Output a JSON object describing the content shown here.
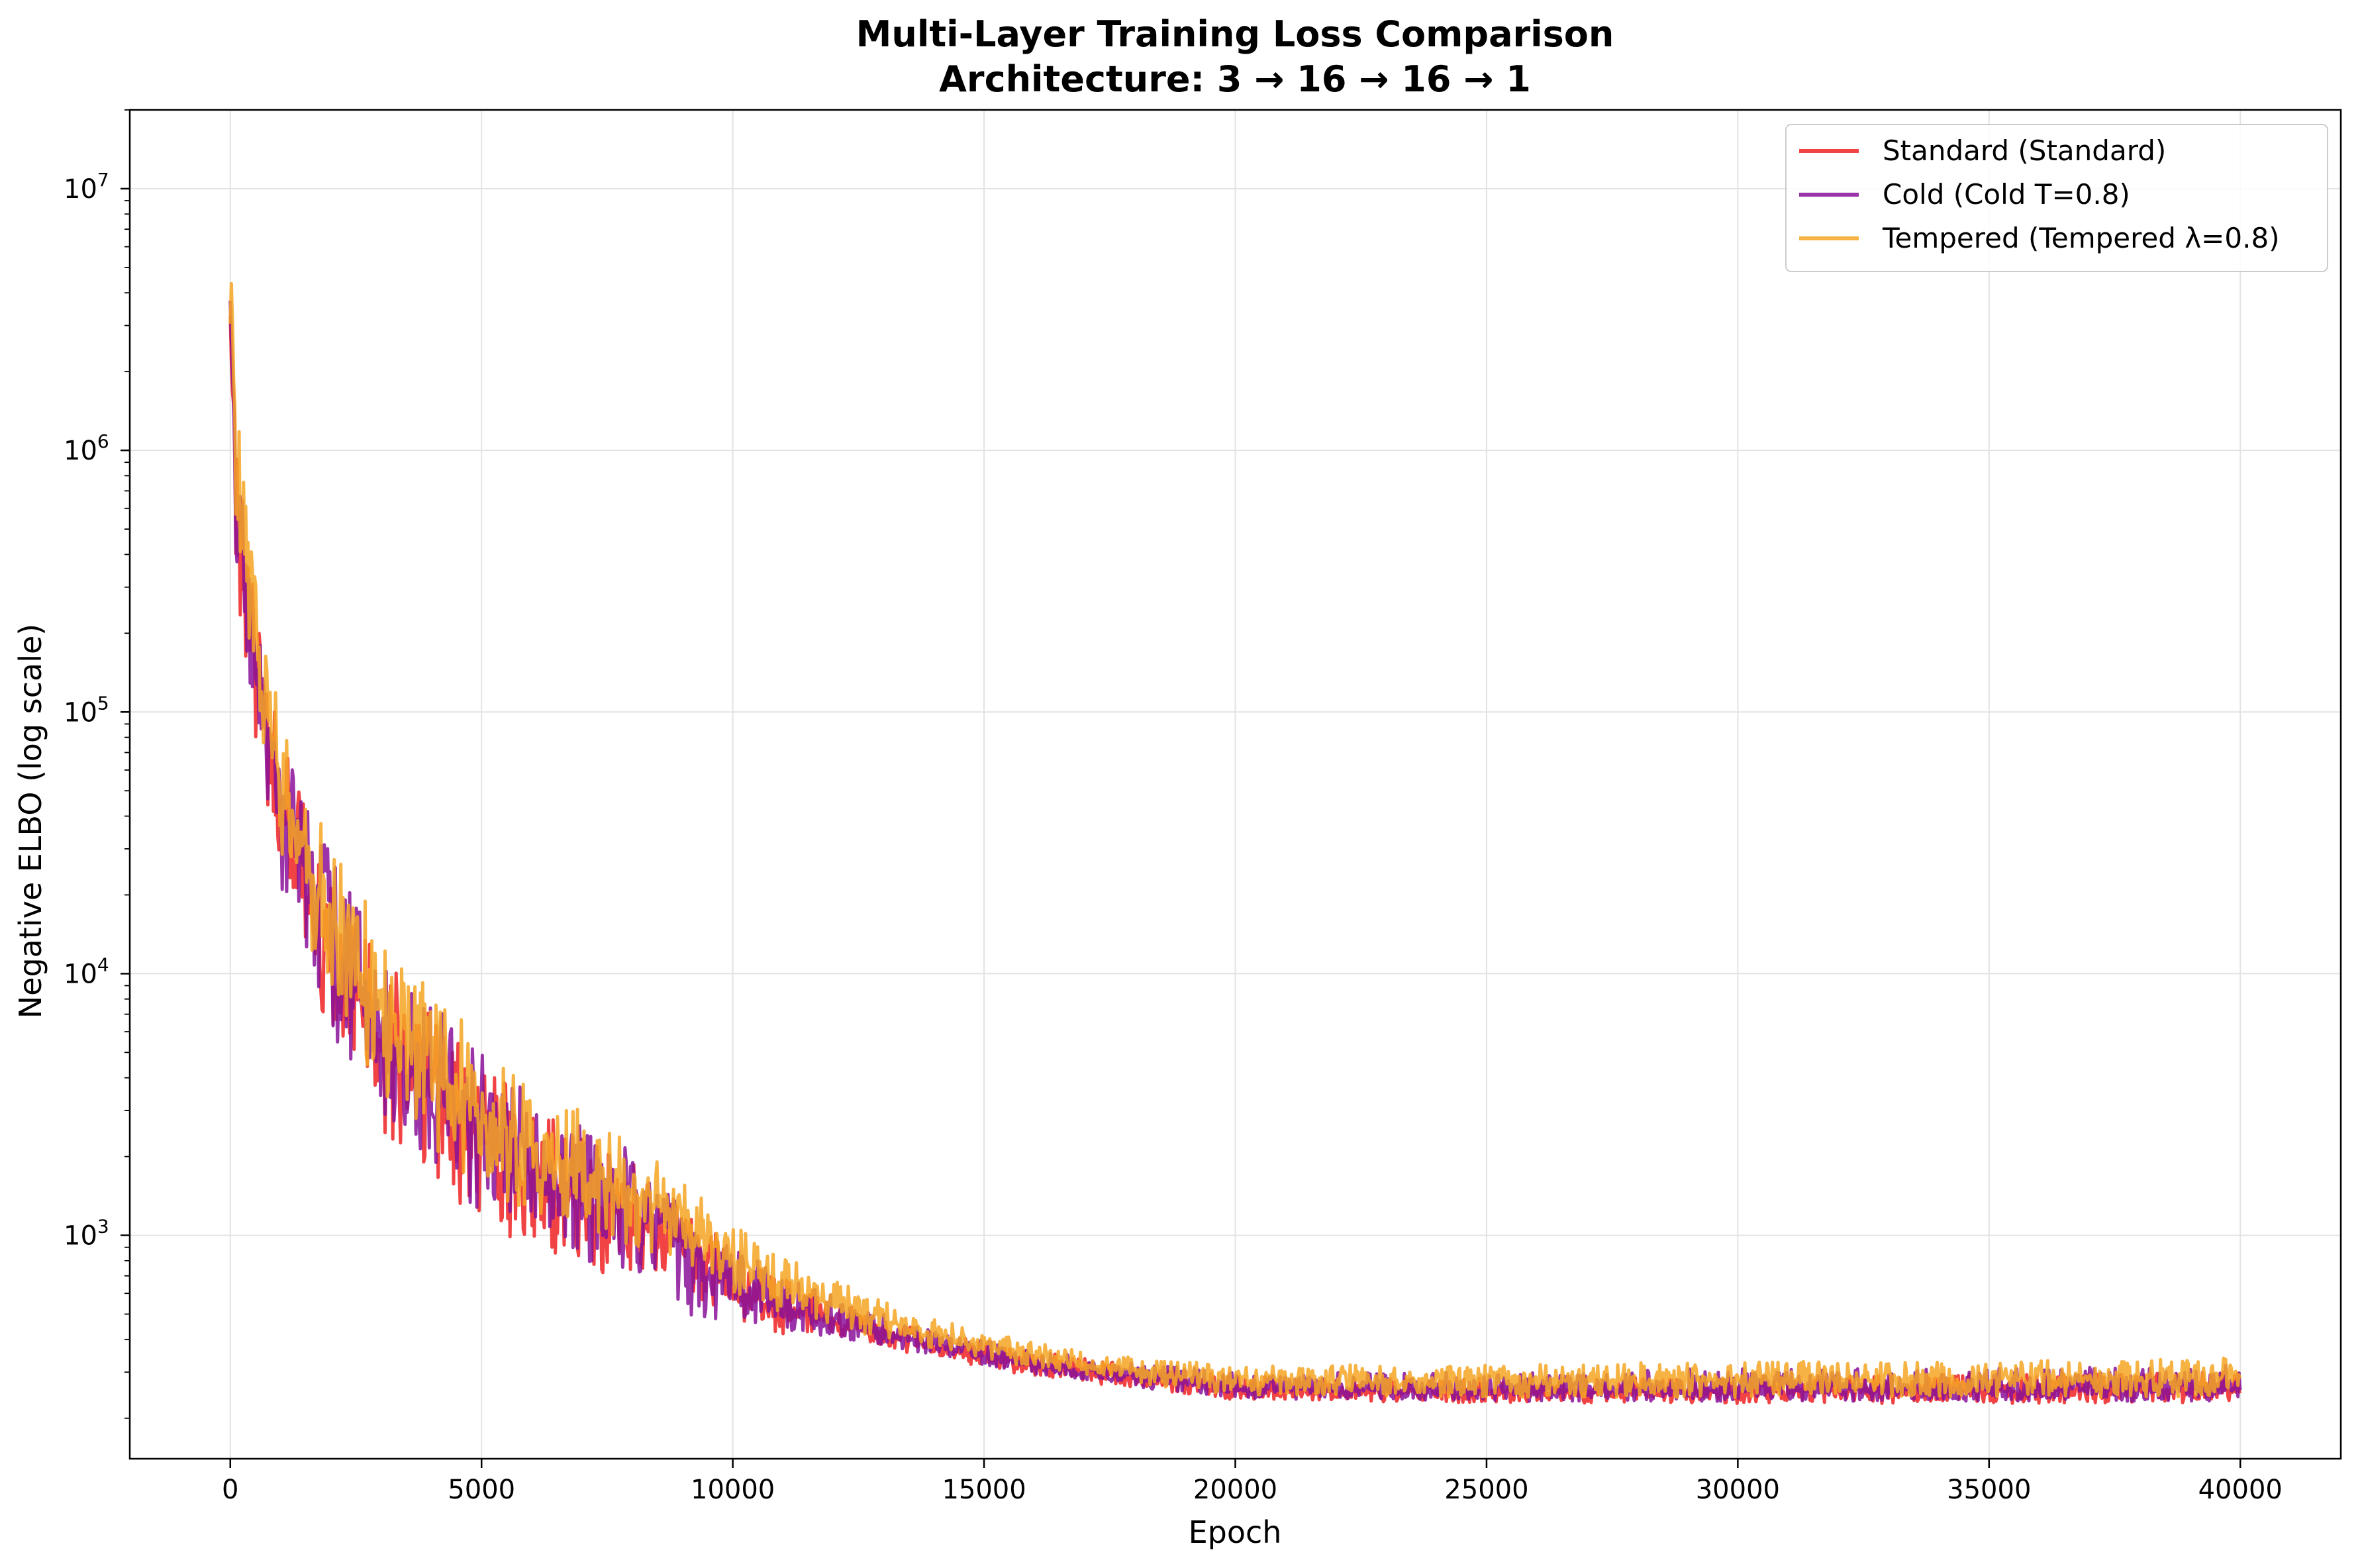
{
  "chart_data": {
    "type": "line",
    "title_line1": "Multi-Layer Training Loss Comparison",
    "title_line2": "Architecture: 3 → 16 → 16 → 1",
    "xlabel": "Epoch",
    "ylabel": "Negative ELBO (log scale)",
    "yscale": "log",
    "xlim": [
      -2000,
      42000
    ],
    "ylim": [
      140,
      20000000
    ],
    "x_ticks": [
      0,
      5000,
      10000,
      15000,
      20000,
      25000,
      30000,
      35000,
      40000
    ],
    "y_ticks": [
      {
        "value": 1000,
        "base": "10",
        "exp": "3"
      },
      {
        "value": 10000,
        "base": "10",
        "exp": "4"
      },
      {
        "value": 100000,
        "base": "10",
        "exp": "5"
      },
      {
        "value": 1000000,
        "base": "10",
        "exp": "6"
      },
      {
        "value": 10000000,
        "base": "10",
        "exp": "7"
      }
    ],
    "grid": true,
    "legend_position": "upper right",
    "series": [
      {
        "name": "Standard (Standard)",
        "color": "#ee2222",
        "x": [
          0,
          100,
          300,
          600,
          1000,
          1500,
          2000,
          3000,
          4000,
          5000,
          6000,
          7000,
          8000,
          9000,
          10000,
          11000,
          12000,
          13000,
          14000,
          15000,
          16000,
          17000,
          18000,
          19000,
          20000,
          25000,
          30000,
          35000,
          40000
        ],
        "low": [
          1500000,
          300000,
          150000,
          60000,
          20000,
          10000,
          5500,
          2500,
          1700,
          1100,
          900,
          750,
          680,
          620,
          480,
          420,
          390,
          360,
          340,
          310,
          290,
          275,
          260,
          245,
          235,
          228,
          228,
          228,
          228
        ],
        "high": [
          7000000,
          2000000,
          600000,
          180000,
          80000,
          45000,
          25000,
          12000,
          7000,
          4500,
          3200,
          2500,
          1900,
          1300,
          900,
          700,
          580,
          480,
          430,
          390,
          360,
          340,
          320,
          310,
          290,
          285,
          290,
          295,
          300
        ],
        "trend": [
          3500000,
          900000,
          300000,
          110000,
          42000,
          22000,
          12000,
          5500,
          3400,
          2200,
          1700,
          1400,
          1150,
          950,
          620,
          520,
          460,
          410,
          380,
          340,
          315,
          300,
          285,
          270,
          255,
          250,
          252,
          255,
          258
        ]
      },
      {
        "name": "Cold (Cold T=0.8)",
        "color": "#881199",
        "x": [
          0,
          100,
          300,
          600,
          1000,
          1500,
          2000,
          3000,
          4000,
          5000,
          6000,
          7000,
          8000,
          9000,
          10000,
          11000,
          12000,
          13000,
          14000,
          15000,
          16000,
          17000,
          18000,
          19000,
          20000,
          25000,
          30000,
          35000,
          40000
        ],
        "low": [
          2000000,
          350000,
          160000,
          70000,
          22000,
          11000,
          6000,
          2700,
          1800,
          1200,
          950,
          800,
          720,
          500,
          470,
          430,
          400,
          370,
          345,
          320,
          295,
          280,
          262,
          248,
          238,
          232,
          232,
          232,
          232
        ],
        "high": [
          12000000,
          2500000,
          650000,
          200000,
          90000,
          50000,
          28000,
          13000,
          8000,
          5000,
          3500,
          2800,
          2100,
          1400,
          950,
          720,
          600,
          500,
          440,
          400,
          370,
          345,
          325,
          315,
          300,
          300,
          310,
          310,
          320
        ],
        "trend": [
          5000000,
          1000000,
          320000,
          120000,
          45000,
          24000,
          13000,
          6000,
          3600,
          2400,
          1800,
          1500,
          1250,
          1000,
          640,
          530,
          470,
          420,
          385,
          345,
          320,
          305,
          290,
          275,
          260,
          255,
          256,
          258,
          260
        ]
      },
      {
        "name": "Tempered (Tempered λ=0.8)",
        "color": "#f5a623",
        "x": [
          0,
          100,
          300,
          600,
          1000,
          1500,
          2000,
          3000,
          4000,
          5000,
          6000,
          7000,
          8000,
          9000,
          10000,
          11000,
          12000,
          13000,
          14000,
          15000,
          16000,
          17000,
          18000,
          19000,
          20000,
          25000,
          30000,
          35000,
          40000
        ],
        "low": [
          2500000,
          500000,
          200000,
          80000,
          30000,
          14000,
          8000,
          3500,
          2200,
          1500,
          1200,
          1000,
          900,
          780,
          600,
          500,
          440,
          400,
          370,
          340,
          310,
          290,
          270,
          255,
          245,
          240,
          240,
          240,
          240
        ],
        "high": [
          8000000,
          2200000,
          700000,
          220000,
          100000,
          55000,
          32000,
          15000,
          9000,
          5500,
          4000,
          3000,
          2300,
          1600,
          1100,
          850,
          680,
          560,
          480,
          430,
          390,
          360,
          340,
          330,
          320,
          320,
          330,
          330,
          340
        ],
        "trend": [
          4500000,
          1100000,
          380000,
          130000,
          55000,
          28000,
          16000,
          7500,
          4400,
          2900,
          2200,
          1750,
          1450,
          1150,
          800,
          640,
          540,
          470,
          420,
          380,
          345,
          320,
          305,
          290,
          280,
          278,
          280,
          282,
          285
        ]
      }
    ]
  }
}
